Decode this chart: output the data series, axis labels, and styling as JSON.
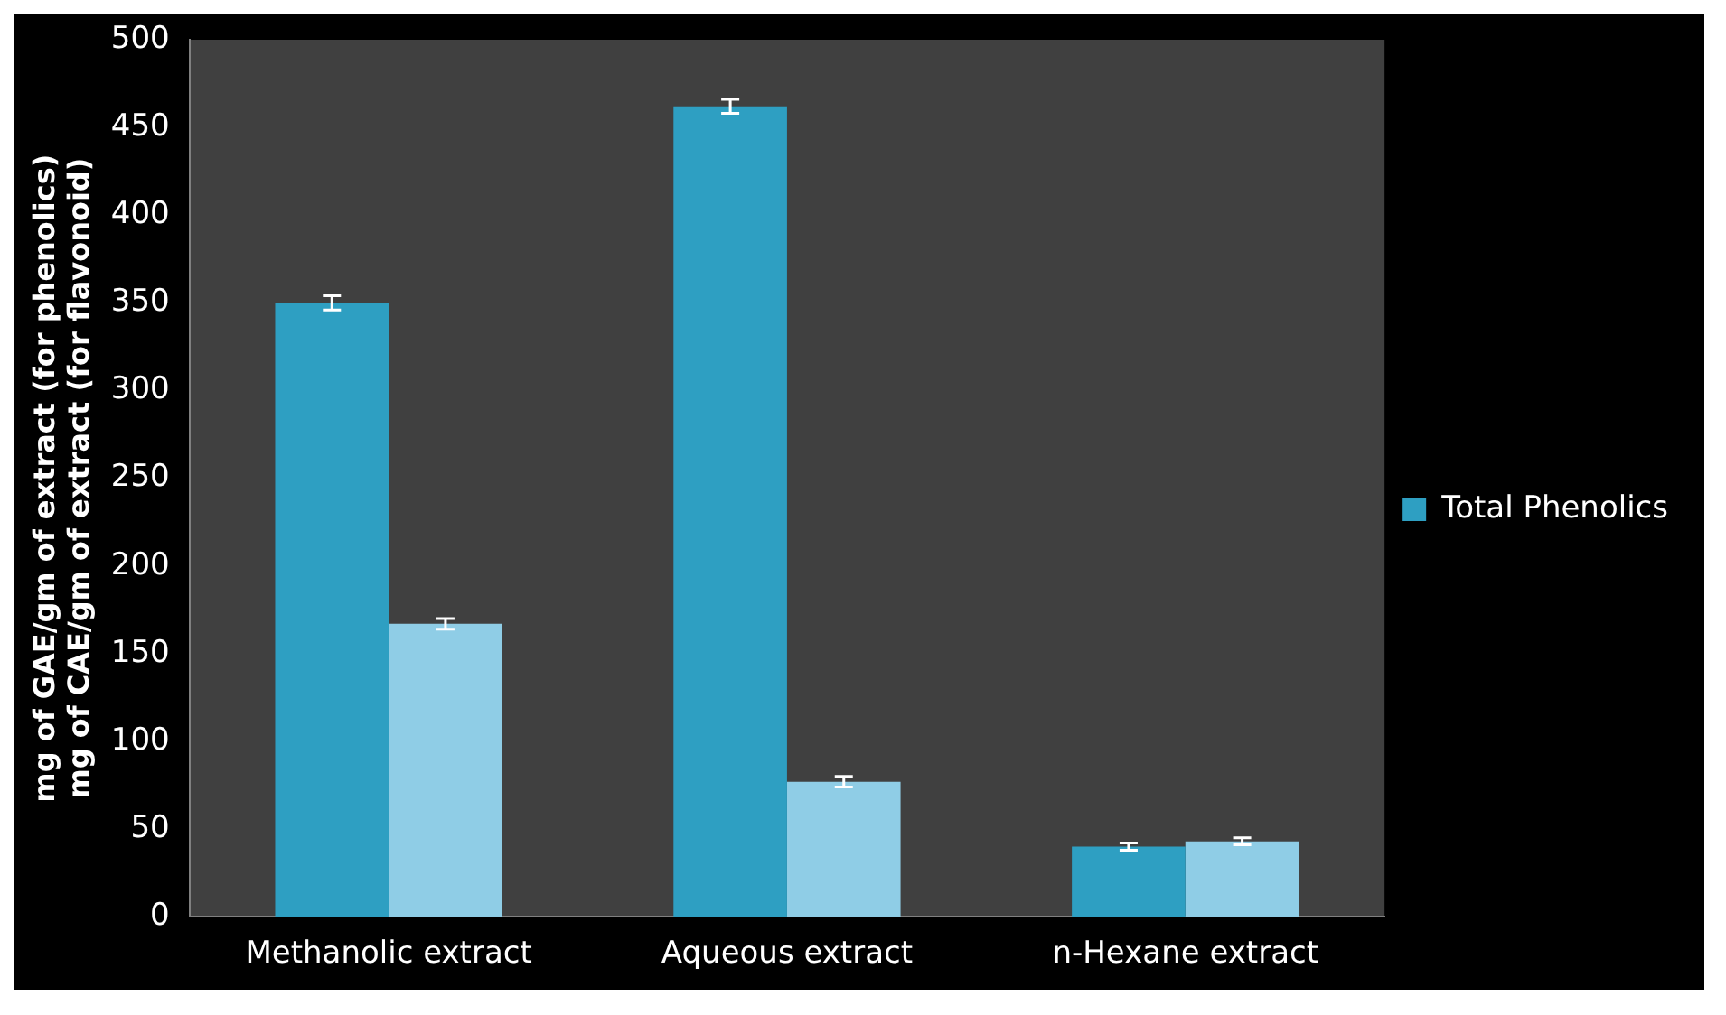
{
  "chart_data": {
    "type": "bar",
    "ylabel": "mg of GAE/gm of extract (for phenolics)\nmg of CAE/gm of extract (for flavonoid)",
    "categories": [
      "Methanolic extract",
      "Aqueous extract",
      "n-Hexane extract"
    ],
    "series": [
      {
        "name": "Total Phenolics",
        "color": "#2e9fc2",
        "values": [
          350,
          462,
          40
        ],
        "errors": [
          4,
          4,
          2
        ]
      },
      {
        "color": "#8fcde6",
        "values": [
          167,
          77,
          43
        ],
        "errors": [
          3,
          3,
          2
        ]
      }
    ],
    "ylim": [
      0,
      500
    ],
    "yticks": [
      0,
      50,
      100,
      150,
      200,
      250,
      300,
      350,
      400,
      450,
      500
    ],
    "grid": false,
    "legend": "right"
  }
}
